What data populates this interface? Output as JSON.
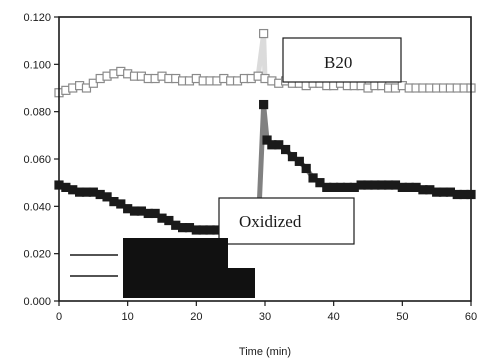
{
  "chart_data": {
    "type": "scatter",
    "xlabel": "Time (min)",
    "ylabel": "",
    "xlim": [
      0,
      60
    ],
    "ylim": [
      0,
      0.12
    ],
    "xticks": [
      "0",
      "10",
      "20",
      "30",
      "40",
      "50",
      "60"
    ],
    "yticks": [
      "0.000",
      "0.020",
      "0.040",
      "0.060",
      "0.080",
      "0.100",
      "0.120"
    ],
    "grid": false,
    "legend_position": "left",
    "annotations": [
      {
        "text": "B20",
        "series": "B20"
      },
      {
        "text": "Oxidized",
        "series": "Oxidized"
      }
    ],
    "series": [
      {
        "name": "B20",
        "marker": "open-square",
        "color": "#bdbdbd",
        "x": [
          0,
          1,
          2,
          3,
          4,
          5,
          6,
          7,
          8,
          9,
          10,
          11,
          12,
          13,
          14,
          15,
          16,
          17,
          18,
          19,
          20,
          21,
          22,
          23,
          24,
          25,
          26,
          27,
          28,
          29,
          29.8,
          30,
          31,
          32,
          33,
          34,
          35,
          36,
          37,
          38,
          39,
          40,
          41,
          42,
          43,
          44,
          45,
          46,
          47,
          48,
          49,
          50,
          51,
          52,
          53,
          54,
          55,
          56,
          57,
          58,
          59,
          60
        ],
        "y": [
          0.088,
          0.089,
          0.09,
          0.091,
          0.09,
          0.092,
          0.094,
          0.095,
          0.096,
          0.097,
          0.096,
          0.095,
          0.095,
          0.094,
          0.094,
          0.095,
          0.094,
          0.094,
          0.093,
          0.093,
          0.094,
          0.093,
          0.093,
          0.093,
          0.094,
          0.093,
          0.093,
          0.094,
          0.094,
          0.095,
          0.113,
          0.094,
          0.093,
          0.092,
          0.093,
          0.092,
          0.092,
          0.091,
          0.092,
          0.092,
          0.091,
          0.091,
          0.092,
          0.091,
          0.091,
          0.091,
          0.09,
          0.091,
          0.091,
          0.09,
          0.09,
          0.091,
          0.09,
          0.09,
          0.09,
          0.09,
          0.09,
          0.09,
          0.09,
          0.09,
          0.09,
          0.09
        ]
      },
      {
        "name": "Oxidized",
        "marker": "filled-square",
        "color": "#1a1a1a",
        "x": [
          0,
          1,
          2,
          3,
          4,
          5,
          6,
          7,
          8,
          9,
          10,
          11,
          12,
          13,
          14,
          15,
          16,
          17,
          18,
          19,
          20,
          21,
          22,
          23,
          24,
          25,
          26,
          27,
          28,
          29,
          29.8,
          30.3,
          31,
          32,
          33,
          34,
          35,
          36,
          37,
          38,
          39,
          40,
          41,
          42,
          43,
          44,
          45,
          46,
          47,
          48,
          49,
          50,
          51,
          52,
          53,
          54,
          55,
          56,
          57,
          58,
          59,
          60
        ],
        "y": [
          0.049,
          0.048,
          0.047,
          0.046,
          0.046,
          0.046,
          0.045,
          0.044,
          0.042,
          0.041,
          0.039,
          0.038,
          0.038,
          0.037,
          0.037,
          0.035,
          0.034,
          0.032,
          0.031,
          0.031,
          0.03,
          0.03,
          0.03,
          0.03,
          0.03,
          0.03,
          0.03,
          0.03,
          0.03,
          0.03,
          0.083,
          0.068,
          0.066,
          0.066,
          0.064,
          0.061,
          0.059,
          0.056,
          0.052,
          0.05,
          0.048,
          0.048,
          0.048,
          0.048,
          0.048,
          0.049,
          0.049,
          0.049,
          0.049,
          0.049,
          0.049,
          0.048,
          0.048,
          0.048,
          0.047,
          0.047,
          0.046,
          0.046,
          0.046,
          0.045,
          0.045,
          0.045
        ]
      }
    ]
  }
}
